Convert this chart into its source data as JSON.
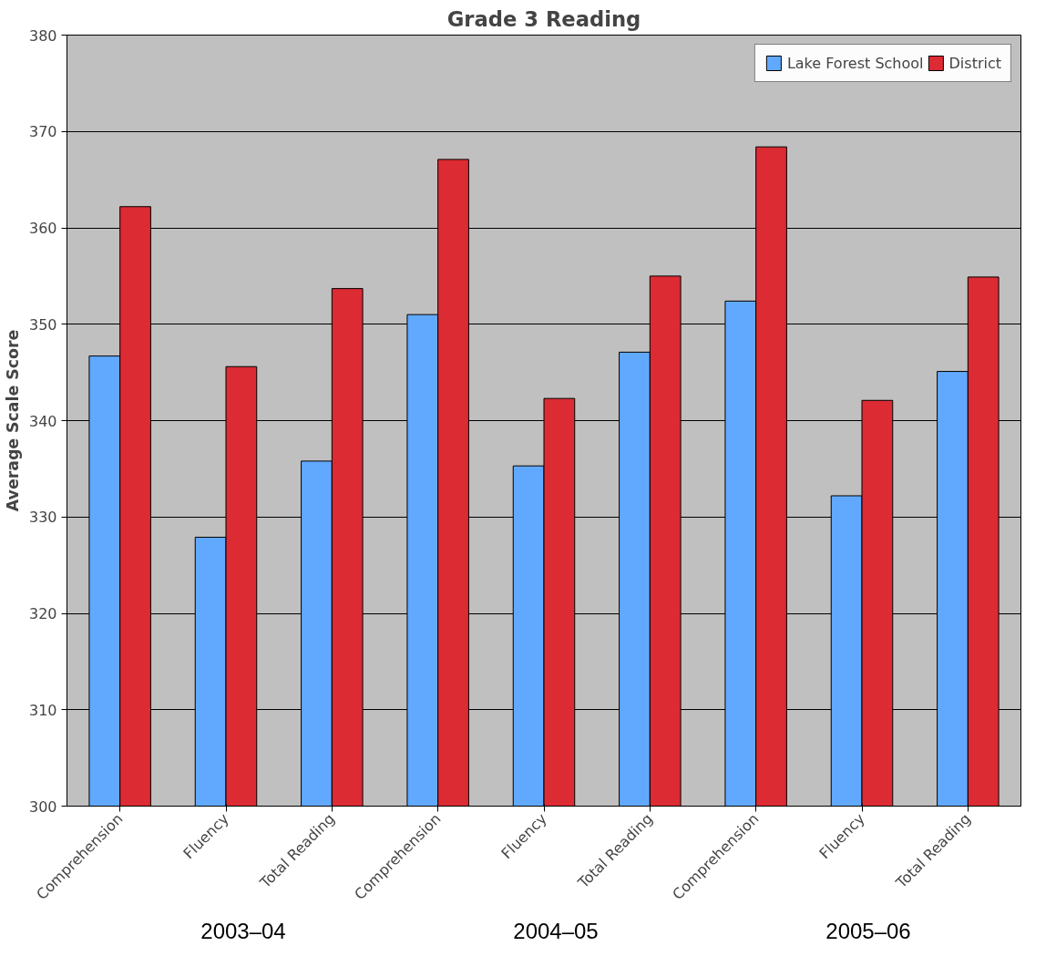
{
  "chart_data": {
    "type": "bar",
    "title": "Grade 3 Reading",
    "ylabel": "Average Scale Score",
    "categories": [
      "Comprehension",
      "Fluency",
      "Total Reading",
      "Comprehension",
      "Fluency",
      "Total Reading",
      "Comprehension",
      "Fluency",
      "Total Reading"
    ],
    "series": [
      {
        "name": "Lake Forest School",
        "color": "#61a9ff",
        "values": [
          346.7,
          327.9,
          335.8,
          351.0,
          335.3,
          347.1,
          352.4,
          332.2,
          345.1
        ]
      },
      {
        "name": "District",
        "color": "#dc2b33",
        "values": [
          362.2,
          345.6,
          353.7,
          367.1,
          342.3,
          355.0,
          368.4,
          342.1,
          354.9
        ]
      }
    ],
    "ylim": [
      300,
      380
    ],
    "yticks": [
      300,
      310,
      320,
      330,
      340,
      350,
      360,
      370,
      380
    ],
    "grid": "y",
    "legend": "top right",
    "annotations": [
      "2003–04",
      "2004–05",
      "2005–06"
    ]
  }
}
